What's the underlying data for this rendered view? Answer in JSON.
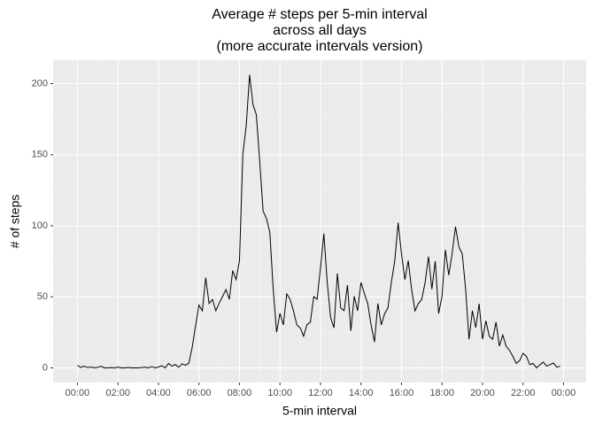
{
  "chart_data": {
    "type": "line",
    "title_lines": [
      "Average # steps per 5-min interval",
      "across all days",
      "(more accurate intervals version)"
    ],
    "x_label": "5-min interval",
    "y_label": "# of steps",
    "x": [
      0,
      10,
      20,
      30,
      40,
      50,
      60,
      70,
      80,
      90,
      100,
      110,
      120,
      130,
      140,
      150,
      160,
      170,
      180,
      190,
      200,
      210,
      220,
      230,
      240,
      250,
      260,
      270,
      280,
      290,
      300,
      310,
      320,
      330,
      340,
      350,
      360,
      370,
      380,
      390,
      400,
      410,
      420,
      430,
      440,
      450,
      460,
      470,
      480,
      490,
      500,
      510,
      520,
      530,
      540,
      550,
      560,
      570,
      580,
      590,
      600,
      610,
      620,
      630,
      640,
      650,
      660,
      670,
      680,
      690,
      700,
      710,
      720,
      730,
      740,
      750,
      760,
      770,
      780,
      790,
      800,
      810,
      820,
      830,
      840,
      850,
      860,
      870,
      880,
      890,
      900,
      910,
      920,
      930,
      940,
      950,
      960,
      970,
      980,
      990,
      1000,
      1010,
      1020,
      1030,
      1040,
      1050,
      1060,
      1070,
      1080,
      1090,
      1100,
      1110,
      1120,
      1130,
      1140,
      1150,
      1160,
      1170,
      1180,
      1190,
      1200,
      1210,
      1220,
      1230,
      1240,
      1250,
      1260,
      1270,
      1280,
      1290,
      1300,
      1310,
      1320,
      1330,
      1340,
      1350,
      1360,
      1370,
      1380,
      1390,
      1400,
      1410,
      1420,
      1430
    ],
    "series": [
      {
        "color": "#000000",
        "values": [
          1.7,
          0.3,
          1.2,
          0.2,
          0.6,
          0.1,
          0.4,
          1.1,
          0,
          0,
          0.2,
          0,
          0.5,
          0,
          0,
          0.3,
          0,
          0,
          0,
          0.2,
          0.5,
          0,
          0.9,
          0,
          0.6,
          1.5,
          0,
          3.1,
          1.2,
          2.4,
          0.4,
          2.9,
          1.8,
          3.2,
          14.5,
          29.6,
          44.2,
          40.1,
          63.5,
          45.3,
          48.1,
          40.2,
          45.5,
          50.3,
          55.1,
          48.2,
          68.4,
          62.1,
          75.3,
          150.2,
          170.4,
          206.2,
          185.3,
          178.1,
          145.2,
          110.4,
          105.1,
          95.2,
          55.3,
          25.1,
          38.4,
          30.2,
          52.1,
          48.3,
          40.1,
          30.2,
          28.1,
          22.3,
          30.4,
          32.2,
          50.1,
          48.3,
          70.2,
          94.5,
          60.1,
          35.3,
          28.2,
          66.4,
          42.1,
          40.3,
          58.2,
          26.1,
          50.4,
          40.2,
          60.1,
          52.3,
          45.2,
          30.1,
          18.2,
          45.3,
          30.2,
          38.1,
          42.3,
          60.4,
          75.2,
          102.1,
          80.3,
          62.1,
          75.4,
          55.2,
          40.1,
          45.3,
          48.2,
          60.1,
          78.3,
          55.4,
          75.1,
          38.2,
          50.3,
          83.1,
          65.2,
          80.4,
          99.4,
          85.1,
          80.2,
          55.3,
          20.1,
          40.2,
          28.3,
          45.1,
          20.2,
          33.1,
          22.3,
          20.1,
          32.2,
          15.3,
          23.1,
          15.2,
          12.3,
          8.1,
          3.2,
          5.1,
          10.2,
          8.1,
          2.3,
          3.1,
          0,
          2.2,
          4.1,
          1.2,
          2.3,
          3.4,
          0.5,
          1.1
        ]
      }
    ],
    "xlim": [
      -72,
      1507
    ],
    "ylim": [
      -10.3,
      216.5
    ],
    "xticks": [
      {
        "value": 0,
        "label": "00:00"
      },
      {
        "value": 120,
        "label": "02:00"
      },
      {
        "value": 240,
        "label": "04:00"
      },
      {
        "value": 360,
        "label": "06:00"
      },
      {
        "value": 480,
        "label": "08:00"
      },
      {
        "value": 600,
        "label": "10:00"
      },
      {
        "value": 720,
        "label": "12:00"
      },
      {
        "value": 840,
        "label": "14:00"
      },
      {
        "value": 960,
        "label": "16:00"
      },
      {
        "value": 1080,
        "label": "18:00"
      },
      {
        "value": 1200,
        "label": "20:00"
      },
      {
        "value": 1320,
        "label": "22:00"
      },
      {
        "value": 1440,
        "label": "00:00"
      }
    ],
    "yticks": [
      0,
      50,
      100,
      150,
      200
    ],
    "grid": true
  }
}
